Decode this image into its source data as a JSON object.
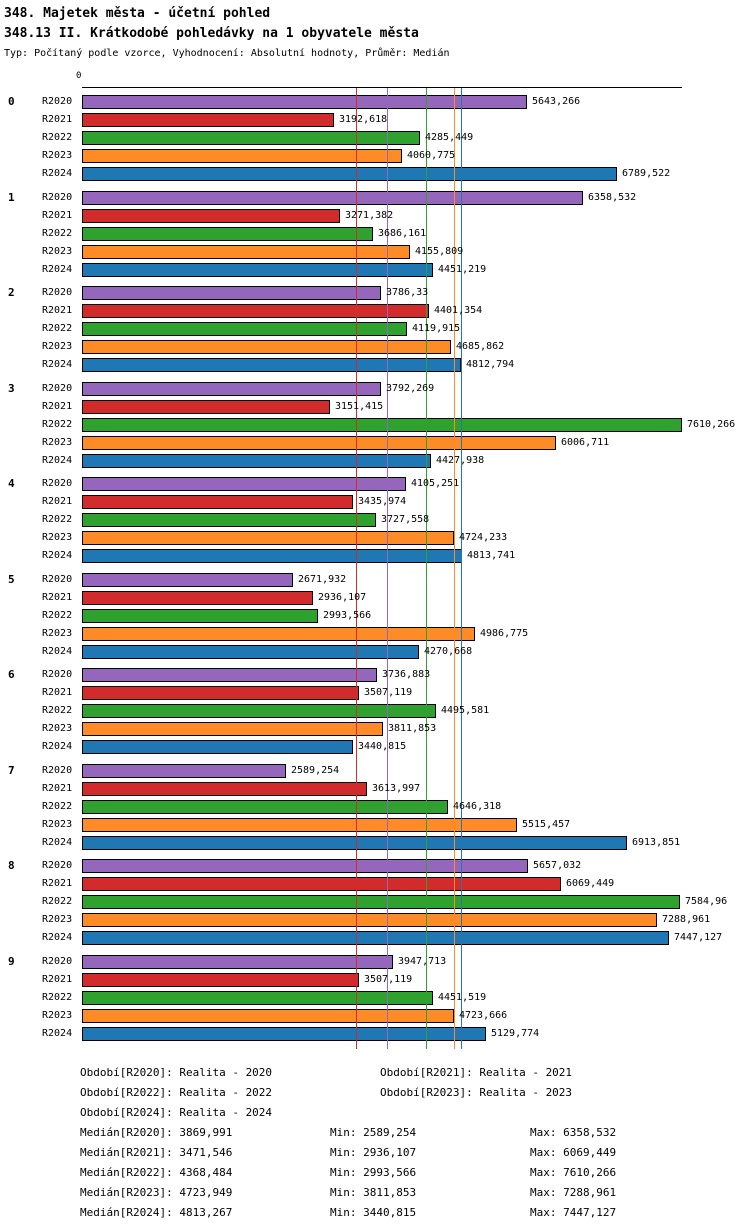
{
  "header": {
    "title": "348. Majetek města - účetní pohled",
    "subtitle": "348.13 II. Krátkodobé pohledávky na 1 obyvatele města",
    "meta": "Typ: Počítaný podle vzorce, Vyhodnocení: Absolutní hodnoty, Průměr: Medián"
  },
  "labels": {
    "min": "Min:",
    "max": "Max:"
  },
  "chart_data": {
    "type": "bar",
    "orientation": "horizontal",
    "number_format": "czech-decimal-comma",
    "axis": {
      "origin_label": "0",
      "xmin": 0,
      "xmax": 7610.266
    },
    "series": [
      {
        "name": "R2020",
        "color": "#9467bd",
        "legend": "Období[R2020]: Realita - 2020",
        "median_label": "Medián[R2020]:",
        "median": "3869,991",
        "min": "2589,254",
        "max": "6358,532"
      },
      {
        "name": "R2021",
        "color": "#d22b2b",
        "legend": "Období[R2021]: Realita - 2021",
        "median_label": "Medián[R2021]:",
        "median": "3471,546",
        "min": "2936,107",
        "max": "6069,449"
      },
      {
        "name": "R2022",
        "color": "#2fa12e",
        "legend": "Období[R2022]: Realita - 2022",
        "median_label": "Medián[R2022]:",
        "median": "4368,484",
        "min": "2993,566",
        "max": "7610,266"
      },
      {
        "name": "R2023",
        "color": "#ff8b26",
        "legend": "Období[R2023]: Realita - 2023",
        "median_label": "Medián[R2023]:",
        "median": "4723,949",
        "min": "3811,853",
        "max": "7288,961"
      },
      {
        "name": "R2024",
        "color": "#1f77b4",
        "legend": "Období[R2024]: Realita - 2024",
        "median_label": "Medián[R2024]:",
        "median": "4813,267",
        "min": "3440,815",
        "max": "7447,127"
      }
    ],
    "groups": [
      {
        "label": "0",
        "values": [
          "5643,266",
          "3192,618",
          "4285,449",
          "4060,775",
          "6789,522"
        ]
      },
      {
        "label": "1",
        "values": [
          "6358,532",
          "3271,382",
          "3686,161",
          "4155,809",
          "4451,219"
        ]
      },
      {
        "label": "2",
        "values": [
          "3786,33",
          "4401,354",
          "4119,915",
          "4685,862",
          "4812,794"
        ]
      },
      {
        "label": "3",
        "values": [
          "3792,269",
          "3151,415",
          "7610,266",
          "6006,711",
          "4427,938"
        ]
      },
      {
        "label": "4",
        "values": [
          "4105,251",
          "3435,974",
          "3727,558",
          "4724,233",
          "4813,741"
        ]
      },
      {
        "label": "5",
        "values": [
          "2671,932",
          "2936,107",
          "2993,566",
          "4986,775",
          "4270,668"
        ]
      },
      {
        "label": "6",
        "values": [
          "3736,883",
          "3507,119",
          "4495,581",
          "3811,853",
          "3440,815"
        ]
      },
      {
        "label": "7",
        "values": [
          "2589,254",
          "3613,997",
          "4646,318",
          "5515,457",
          "6913,851"
        ]
      },
      {
        "label": "8",
        "values": [
          "5657,032",
          "6069,449",
          "7584,96",
          "7288,961",
          "7447,127"
        ]
      },
      {
        "label": "9",
        "values": [
          "3947,713",
          "3507,119",
          "4451,519",
          "4723,666",
          "5129,774"
        ]
      }
    ]
  }
}
